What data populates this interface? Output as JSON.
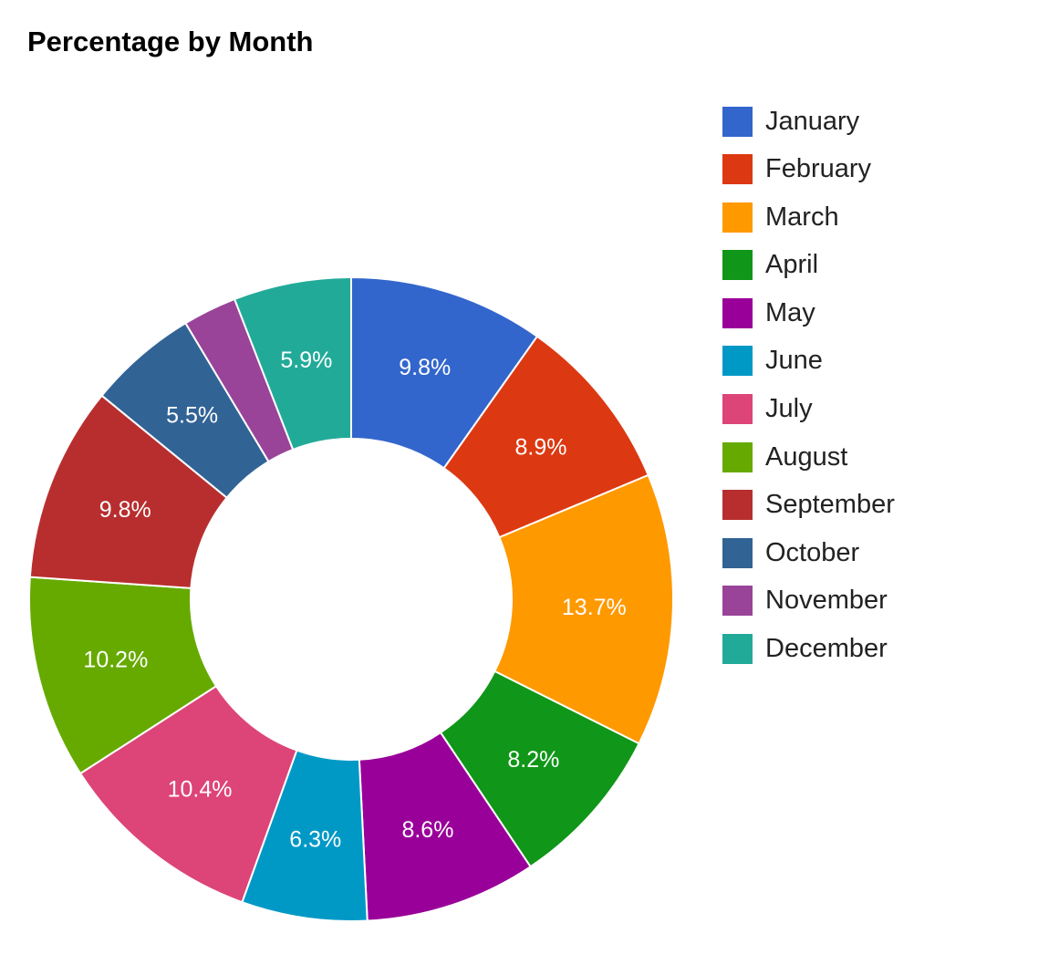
{
  "chart_data": {
    "type": "pie",
    "variant": "donut",
    "title": "Percentage by Month",
    "legend_position": "right",
    "slices": [
      {
        "name": "January",
        "value": 9.8,
        "label": "9.8%",
        "color": "#3366cc"
      },
      {
        "name": "February",
        "value": 8.9,
        "label": "8.9%",
        "color": "#dc3912"
      },
      {
        "name": "March",
        "value": 13.7,
        "label": "13.7%",
        "color": "#ff9900"
      },
      {
        "name": "April",
        "value": 8.2,
        "label": "8.2%",
        "color": "#109618"
      },
      {
        "name": "May",
        "value": 8.6,
        "label": "8.6%",
        "color": "#990099"
      },
      {
        "name": "June",
        "value": 6.3,
        "label": "6.3%",
        "color": "#0099c6"
      },
      {
        "name": "July",
        "value": 10.4,
        "label": "10.4%",
        "color": "#dd4477"
      },
      {
        "name": "August",
        "value": 10.2,
        "label": "10.2%",
        "color": "#66aa00"
      },
      {
        "name": "September",
        "value": 9.8,
        "label": "9.8%",
        "color": "#b82e2e"
      },
      {
        "name": "October",
        "value": 5.5,
        "label": "5.5%",
        "color": "#316395"
      },
      {
        "name": "November",
        "value": 2.7,
        "label": "",
        "color": "#994499"
      },
      {
        "name": "December",
        "value": 5.9,
        "label": "5.9%",
        "color": "#22aa99"
      }
    ]
  }
}
